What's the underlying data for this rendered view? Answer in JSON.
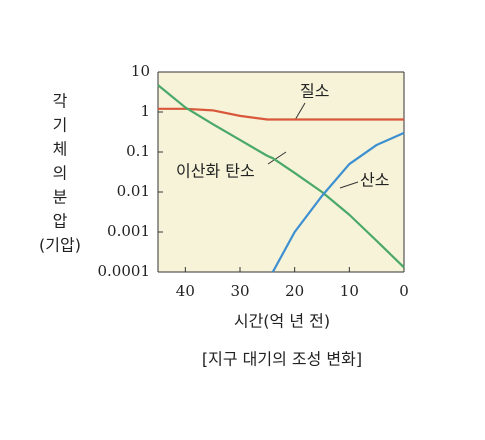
{
  "chart_data": {
    "type": "line",
    "ylabel": [
      "각",
      "기",
      "체",
      "의",
      "분",
      "압",
      "(기압)"
    ],
    "xlabel": "시간(억 년 전)",
    "caption": "[지구 대기의 조성 변화]",
    "x": [
      45,
      40,
      35,
      30,
      25,
      24,
      20,
      15,
      10,
      5,
      0
    ],
    "series": [
      {
        "name": "질소",
        "color": "#d9573a",
        "values": [
          1.2,
          1.2,
          1.1,
          0.8,
          0.65,
          0.65,
          0.65,
          0.65,
          0.65,
          0.65,
          0.65
        ]
      },
      {
        "name": "이산화 탄소",
        "color": "#4aa868",
        "values": [
          4.7,
          1.3,
          0.5,
          0.2,
          0.08,
          0.07,
          0.03,
          0.01,
          0.0027,
          0.0006,
          0.00013
        ]
      },
      {
        "name": "산소",
        "color": "#3d8fd0",
        "values": [
          null,
          null,
          null,
          null,
          null,
          0.0001,
          0.001,
          0.008,
          0.05,
          0.15,
          0.3
        ]
      }
    ],
    "xlim": [
      45,
      0
    ],
    "xticks": [
      40,
      30,
      20,
      10,
      0
    ],
    "ylim": [
      0.0001,
      10
    ],
    "yticks": [
      10,
      1,
      0.1,
      0.01,
      0.001,
      0.0001
    ],
    "ylog": true
  }
}
